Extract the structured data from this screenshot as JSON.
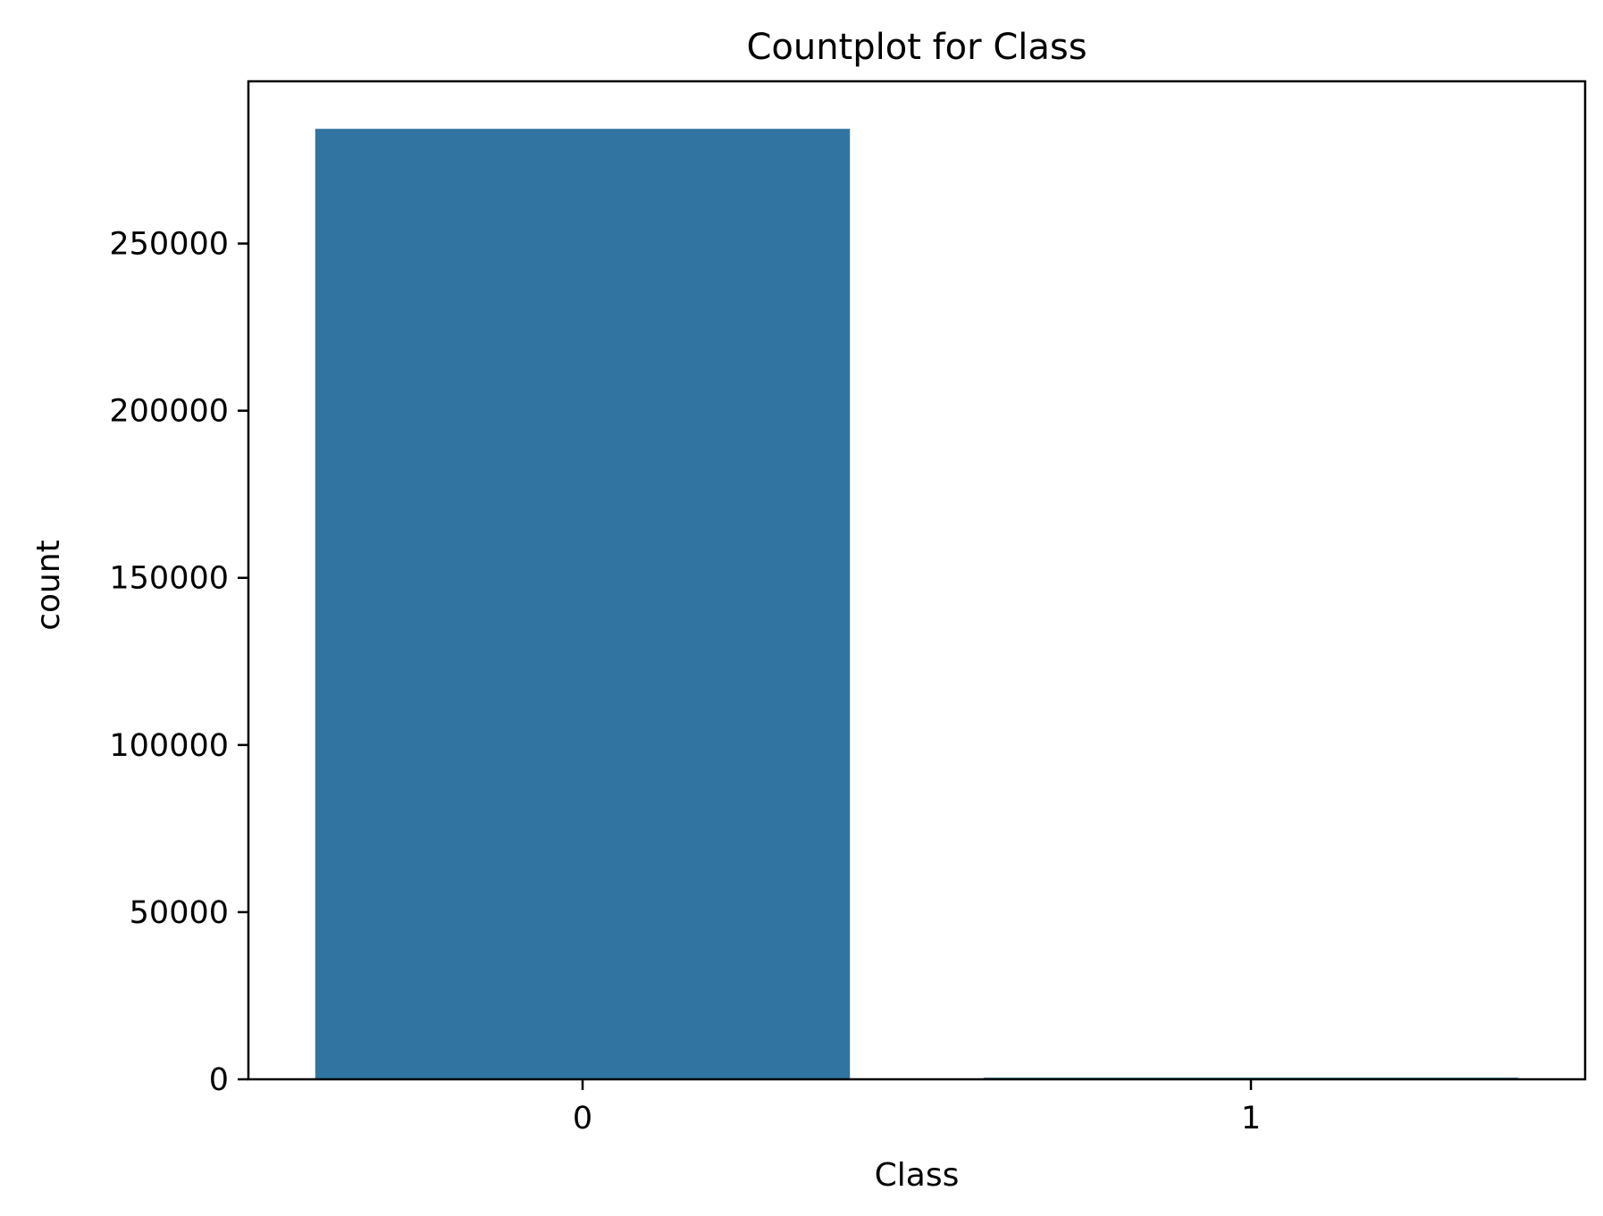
{
  "chart_data": {
    "type": "bar",
    "title": "Countplot for Class",
    "xlabel": "Class",
    "ylabel": "count",
    "categories": [
      "0",
      "1"
    ],
    "values": [
      284315,
      492
    ],
    "ylim": [
      0,
      298530
    ],
    "yticks": [
      0,
      50000,
      100000,
      150000,
      200000,
      250000
    ],
    "ytick_labels": [
      "0",
      "50000",
      "100000",
      "150000",
      "200000",
      "250000"
    ],
    "grid": false,
    "legend": "none",
    "colors": {
      "bar": "#3274a1",
      "axes": "#000000",
      "background": "#ffffff"
    }
  }
}
